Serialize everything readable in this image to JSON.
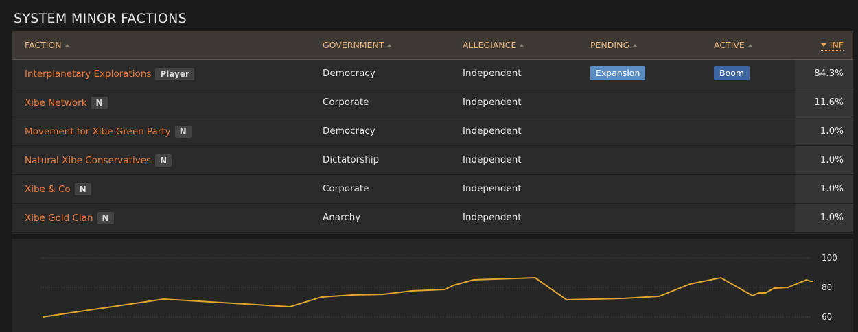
{
  "header": {
    "title": "SYSTEM MINOR FACTIONS"
  },
  "table": {
    "columns": [
      "FACTION",
      "GOVERNMENT",
      "ALLEGIANCE",
      "PENDING",
      "ACTIVE",
      "INF"
    ],
    "rows": [
      {
        "faction": "Interplanetary Explorations",
        "tag": "Player",
        "government": "Democracy",
        "allegiance": "Independent",
        "pending": "Expansion",
        "active": "Boom",
        "inf": "84.3%"
      },
      {
        "faction": "Xibe Network",
        "tag": "N",
        "government": "Corporate",
        "allegiance": "Independent",
        "inf": "11.6%"
      },
      {
        "faction": "Movement for Xibe Green Party",
        "tag": "N",
        "government": "Democracy",
        "allegiance": "Independent",
        "inf": "1.0%"
      },
      {
        "faction": "Natural Xibe Conservatives",
        "tag": "N",
        "government": "Dictatorship",
        "allegiance": "Independent",
        "inf": "1.0%"
      },
      {
        "faction": "Xibe & Co",
        "tag": "N",
        "government": "Corporate",
        "allegiance": "Independent",
        "inf": "1.0%"
      },
      {
        "faction": "Xibe Gold Clan",
        "tag": "N",
        "government": "Anarchy",
        "allegiance": "Independent",
        "inf": "1.0%"
      }
    ]
  },
  "chart_data": {
    "type": "line",
    "x": [
      0,
      15.7,
      32.1,
      36.2,
      40.1,
      44.1,
      47.9,
      52.2,
      53.3,
      55.9,
      63.9,
      68.0,
      75.5,
      80.0,
      84.0,
      88.0,
      92.1,
      92.9,
      93.8,
      94.9,
      96.7,
      98.0,
      98.7,
      99.1,
      99.6,
      100
    ],
    "xlim": [
      0,
      100
    ],
    "series": [
      {
        "color": "#e0a632",
        "values": [
          60,
          72.1,
          67,
          73.5,
          74.9,
          75.3,
          77.7,
          78.6,
          81.4,
          85.1,
          86.5,
          71.6,
          72.6,
          74,
          82.3,
          86.5,
          74.4,
          76.3,
          76.3,
          79.5,
          80,
          82.8,
          84.2,
          85.1,
          84.2,
          84.2
        ]
      }
    ],
    "ylim": [
      60,
      100
    ],
    "yticks": [
      60,
      80,
      100
    ],
    "grid": true
  }
}
